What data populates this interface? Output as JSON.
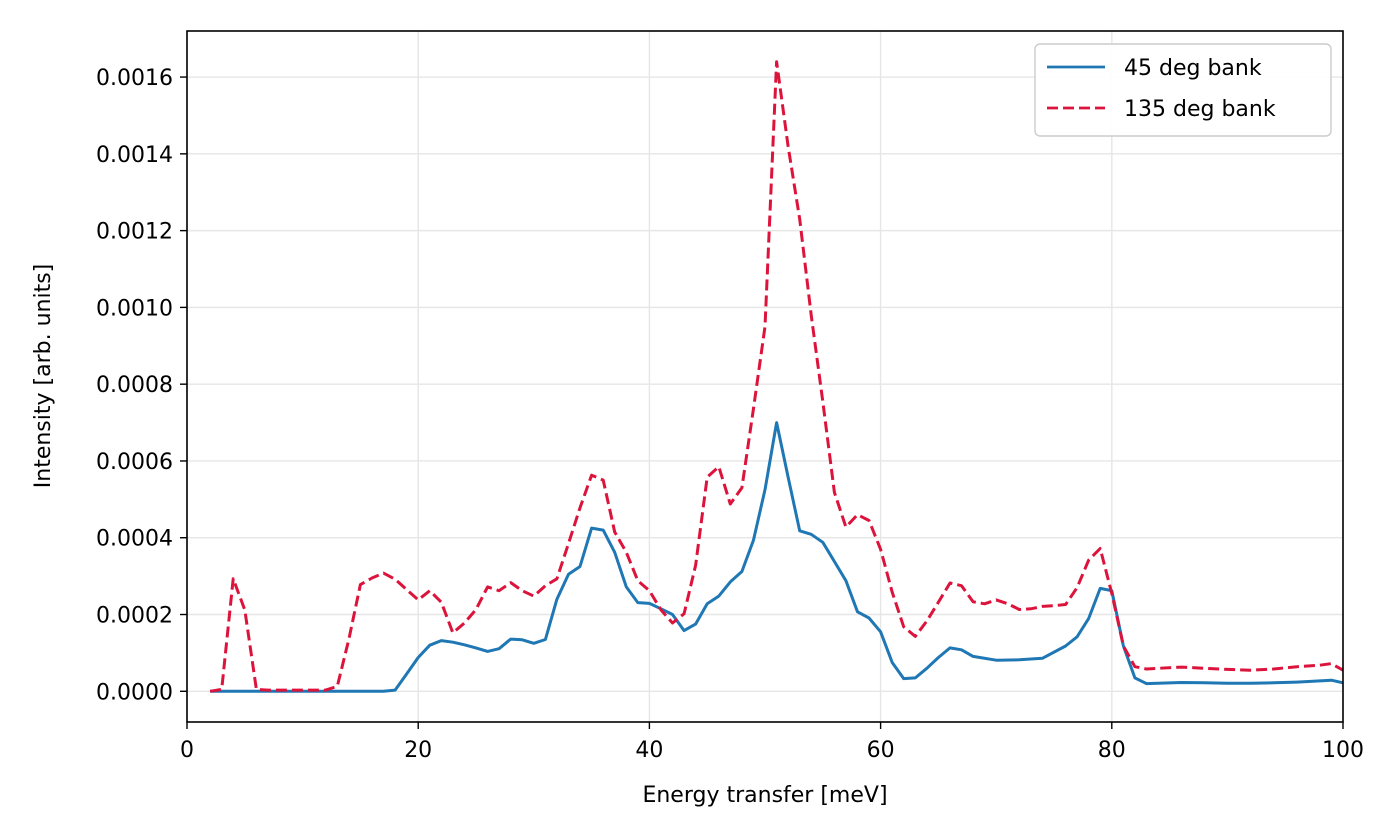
{
  "chart_data": {
    "type": "line",
    "title": "",
    "xlabel": "Energy transfer [meV]",
    "ylabel": "Intensity [arb. units]",
    "xlim": [
      0,
      100
    ],
    "ylim": [
      -8e-05,
      0.00172
    ],
    "xticks": [
      0,
      20,
      40,
      60,
      80,
      100
    ],
    "xtick_labels": [
      "0",
      "20",
      "40",
      "60",
      "80",
      "100"
    ],
    "yticks": [
      0,
      0.0002,
      0.0004,
      0.0006,
      0.0008,
      0.001,
      0.0012,
      0.0014,
      0.0016
    ],
    "ytick_labels": [
      "0.0000",
      "0.0002",
      "0.0004",
      "0.0006",
      "0.0008",
      "0.0010",
      "0.0012",
      "0.0014",
      "0.0016"
    ],
    "grid": true,
    "legend_position": "upper right",
    "series": [
      {
        "name": "45 deg bank",
        "color": "#1f77b4",
        "style": "solid",
        "x": [
          2,
          4,
          6,
          8,
          10,
          12,
          14,
          16,
          17,
          18,
          19,
          20,
          21,
          22,
          23,
          24,
          25,
          26,
          27,
          28,
          29,
          30,
          31,
          32,
          33,
          34,
          35,
          36,
          37,
          38,
          39,
          40,
          41,
          42,
          43,
          44,
          45,
          46,
          47,
          48,
          49,
          50,
          51,
          52,
          53,
          54,
          55,
          56,
          57,
          58,
          59,
          60,
          61,
          62,
          63,
          64,
          65,
          66,
          67,
          68,
          70,
          72,
          74,
          76,
          77,
          78,
          79,
          80,
          81,
          82,
          83,
          84,
          86,
          88,
          90,
          92,
          94,
          96,
          98,
          99,
          100
        ],
        "y": [
          0,
          0,
          0,
          0,
          0,
          0,
          0,
          0,
          0,
          3e-06,
          4.5e-05,
          8.8e-05,
          0.00012,
          0.000132,
          0.000128,
          0.000121,
          0.000113,
          0.000104,
          0.000111,
          0.000136,
          0.000134,
          0.000125,
          0.000135,
          0.00024,
          0.000305,
          0.000325,
          0.000425,
          0.00042,
          0.000362,
          0.000272,
          0.000231,
          0.000229,
          0.000215,
          0.0002,
          0.000158,
          0.000175,
          0.000228,
          0.000248,
          0.000285,
          0.000312,
          0.000393,
          0.000525,
          0.0007,
          0.000558,
          0.000418,
          0.000409,
          0.000388,
          0.000338,
          0.000288,
          0.000207,
          0.000191,
          0.000155,
          7.5e-05,
          3.3e-05,
          3.5e-05,
          6e-05,
          8.8e-05,
          0.000113,
          0.000108,
          9.1e-05,
          8.1e-05,
          8.2e-05,
          8.6e-05,
          0.000118,
          0.000142,
          0.00019,
          0.000268,
          0.000262,
          0.000118,
          3.5e-05,
          2e-05,
          2.1e-05,
          2.3e-05,
          2.2e-05,
          2.1e-05,
          2.1e-05,
          2.2e-05,
          2.4e-05,
          2.7e-05,
          2.9e-05,
          2.2e-05
        ]
      },
      {
        "name": "135 deg bank",
        "color": "#dc143c",
        "style": "dashed",
        "x": [
          2,
          3,
          4,
          5,
          6,
          7,
          8,
          9,
          10,
          11,
          12,
          13,
          14,
          15,
          16,
          17,
          18,
          19,
          20,
          21,
          22,
          23,
          24,
          25,
          26,
          27,
          28,
          29,
          30,
          31,
          32,
          33,
          34,
          35,
          36,
          37,
          38,
          39,
          40,
          41,
          42,
          43,
          44,
          45,
          46,
          47,
          48,
          49,
          50,
          51,
          52,
          53,
          54,
          55,
          56,
          57,
          58,
          59,
          60,
          61,
          62,
          63,
          64,
          65,
          66,
          67,
          68,
          69,
          70,
          71,
          72,
          73,
          74,
          75,
          76,
          77,
          78,
          79,
          80,
          81,
          82,
          83,
          84,
          86,
          88,
          90,
          92,
          94,
          96,
          98,
          99,
          100
        ],
        "y": [
          0,
          5e-06,
          0.000293,
          0.000212,
          5e-06,
          3e-06,
          3e-06,
          3e-06,
          3e-06,
          3e-06,
          3e-06,
          1.3e-05,
          0.000135,
          0.000278,
          0.000295,
          0.000308,
          0.000292,
          0.000265,
          0.000238,
          0.000262,
          0.000232,
          0.000152,
          0.000178,
          0.000213,
          0.000272,
          0.000262,
          0.000283,
          0.000262,
          0.000248,
          0.000275,
          0.000293,
          0.000385,
          0.000478,
          0.000563,
          0.00055,
          0.000415,
          0.000362,
          0.000288,
          0.000262,
          0.000212,
          0.000178,
          0.000202,
          0.000328,
          0.000558,
          0.000585,
          0.000488,
          0.00053,
          0.000735,
          0.00095,
          0.00164,
          0.00142,
          0.00123,
          0.00098,
          0.000755,
          0.000518,
          0.000428,
          0.00046,
          0.000445,
          0.00037,
          0.000258,
          0.000168,
          0.000143,
          0.000183,
          0.000232,
          0.000282,
          0.000275,
          0.000233,
          0.000228,
          0.000238,
          0.000228,
          0.000213,
          0.000215,
          0.000221,
          0.000223,
          0.000226,
          0.00027,
          0.000342,
          0.000372,
          0.000255,
          0.000118,
          6.4e-05,
          5.8e-05,
          6e-05,
          6.3e-05,
          6e-05,
          5.7e-05,
          5.5e-05,
          5.8e-05,
          6.4e-05,
          6.8e-05,
          7.2e-05,
          5.5e-05
        ]
      }
    ]
  }
}
